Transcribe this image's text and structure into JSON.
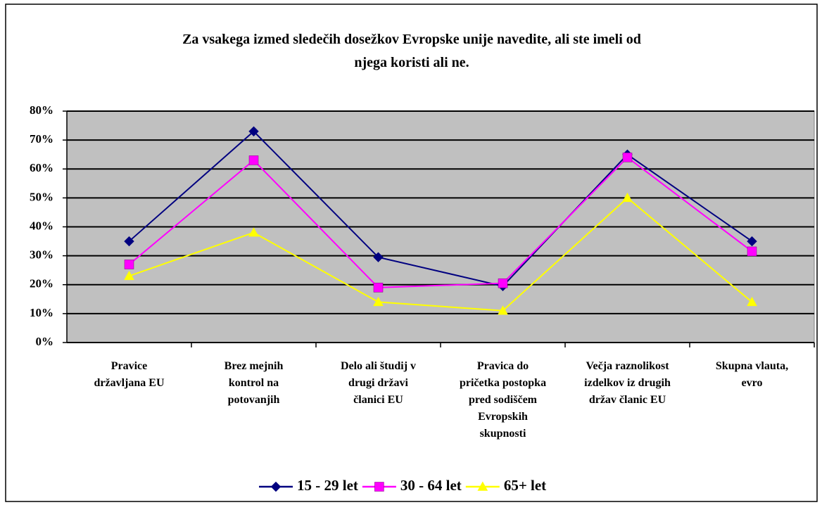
{
  "chart_data": {
    "type": "line",
    "title": "Za vsakega izmed sledečih dosežkov Evropske unije navedite, ali ste imeli od\nnjega koristi ali ne.",
    "categories": [
      "Pravice\ndržavljana EU",
      "Brez mejnih\nkontrol na\npotovanjih",
      "Delo ali študij v\ndrugi državi\nčlanici EU",
      "Pravica do\npričetka postopka\npred sodiščem\nEvropskih\nskupnosti",
      "Večja raznolikost\nizdelkov iz drugih\ndržav članic EU",
      "Skupna vlauta,\nevro"
    ],
    "series": [
      {
        "name": "15 - 29 let",
        "color": "#000080",
        "marker": "diamond",
        "values": [
          35,
          73,
          29.5,
          19.5,
          65,
          35
        ]
      },
      {
        "name": "30 - 64 let",
        "color": "#ff00ff",
        "marker": "square",
        "values": [
          27,
          63,
          19,
          20.5,
          64,
          31.5
        ]
      },
      {
        "name": "65+ let",
        "color": "#ffff00",
        "marker": "triangle",
        "values": [
          23,
          38,
          14,
          11,
          50,
          14
        ]
      }
    ],
    "ylim": [
      0,
      80
    ],
    "yticks": [
      {
        "value": 0,
        "label": "0%"
      },
      {
        "value": 10,
        "label": "10%"
      },
      {
        "value": 20,
        "label": "20%"
      },
      {
        "value": 30,
        "label": "30%"
      },
      {
        "value": 40,
        "label": "40%"
      },
      {
        "value": 50,
        "label": "50%"
      },
      {
        "value": 60,
        "label": "60%"
      },
      {
        "value": 70,
        "label": "70%"
      },
      {
        "value": 80,
        "label": "80%"
      }
    ],
    "grid": true,
    "legend": "bottom",
    "plot_background": "#c0c0c0"
  }
}
